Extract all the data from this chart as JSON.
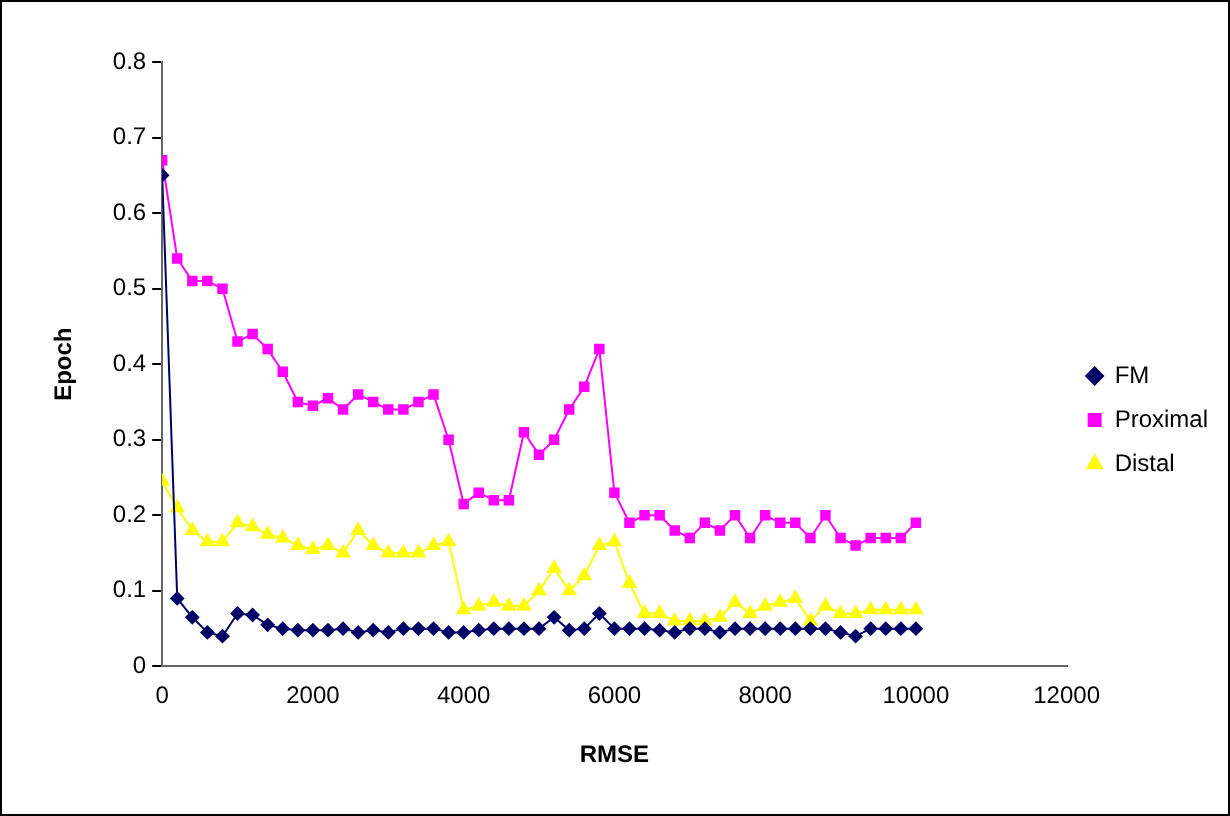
{
  "chart_data": {
    "type": "line",
    "xlabel": "RMSE",
    "ylabel": "Epoch",
    "x": [
      0,
      200,
      400,
      600,
      800,
      1000,
      1200,
      1400,
      1600,
      1800,
      2000,
      2200,
      2400,
      2600,
      2800,
      3000,
      3200,
      3400,
      3600,
      3800,
      4000,
      4200,
      4400,
      4600,
      4800,
      5000,
      5200,
      5400,
      5600,
      5800,
      6000,
      6200,
      6400,
      6600,
      6800,
      7000,
      7200,
      7400,
      7600,
      7800,
      8000,
      8200,
      8400,
      8600,
      8800,
      9000,
      9200,
      9400,
      9600,
      9800,
      10000
    ],
    "series": [
      {
        "name": "FM",
        "color": "#000066",
        "marker": "diamond",
        "values": [
          0.65,
          0.09,
          0.065,
          0.045,
          0.04,
          0.07,
          0.068,
          0.055,
          0.05,
          0.048,
          0.048,
          0.048,
          0.05,
          0.045,
          0.048,
          0.045,
          0.05,
          0.05,
          0.05,
          0.045,
          0.045,
          0.048,
          0.05,
          0.05,
          0.05,
          0.05,
          0.065,
          0.048,
          0.05,
          0.07,
          0.05,
          0.05,
          0.05,
          0.048,
          0.045,
          0.05,
          0.05,
          0.045,
          0.05,
          0.05,
          0.05,
          0.05,
          0.05,
          0.05,
          0.05,
          0.045,
          0.04,
          0.05,
          0.05,
          0.05,
          0.05
        ]
      },
      {
        "name": "Proximal",
        "color": "#ff00ff",
        "marker": "square",
        "values": [
          0.67,
          0.54,
          0.51,
          0.51,
          0.5,
          0.43,
          0.44,
          0.42,
          0.39,
          0.35,
          0.345,
          0.355,
          0.34,
          0.36,
          0.35,
          0.34,
          0.34,
          0.35,
          0.36,
          0.3,
          0.215,
          0.23,
          0.22,
          0.22,
          0.31,
          0.28,
          0.3,
          0.34,
          0.37,
          0.42,
          0.23,
          0.19,
          0.2,
          0.2,
          0.18,
          0.17,
          0.19,
          0.18,
          0.2,
          0.17,
          0.2,
          0.19,
          0.19,
          0.17,
          0.2,
          0.17,
          0.16,
          0.17,
          0.17,
          0.17,
          0.19
        ]
      },
      {
        "name": "Distal",
        "color": "#ffff00",
        "marker": "triangle",
        "values": [
          0.245,
          0.21,
          0.18,
          0.165,
          0.165,
          0.19,
          0.185,
          0.175,
          0.17,
          0.16,
          0.155,
          0.16,
          0.15,
          0.18,
          0.16,
          0.15,
          0.15,
          0.15,
          0.16,
          0.165,
          0.075,
          0.08,
          0.085,
          0.08,
          0.08,
          0.1,
          0.13,
          0.1,
          0.12,
          0.16,
          0.165,
          0.11,
          0.07,
          0.07,
          0.06,
          0.06,
          0.06,
          0.065,
          0.085,
          0.07,
          0.08,
          0.085,
          0.09,
          0.06,
          0.08,
          0.07,
          0.07,
          0.075,
          0.075,
          0.075,
          0.075
        ]
      }
    ],
    "xlim": [
      0,
      12000
    ],
    "xticks": [
      0,
      2000,
      4000,
      6000,
      8000,
      10000,
      12000
    ],
    "ylim": [
      0,
      0.8
    ],
    "yticks": [
      0,
      0.1,
      0.2,
      0.3,
      0.4,
      0.5,
      0.6,
      0.7,
      0.8
    ],
    "grid": false,
    "legend": "right",
    "line_style": "solid"
  }
}
